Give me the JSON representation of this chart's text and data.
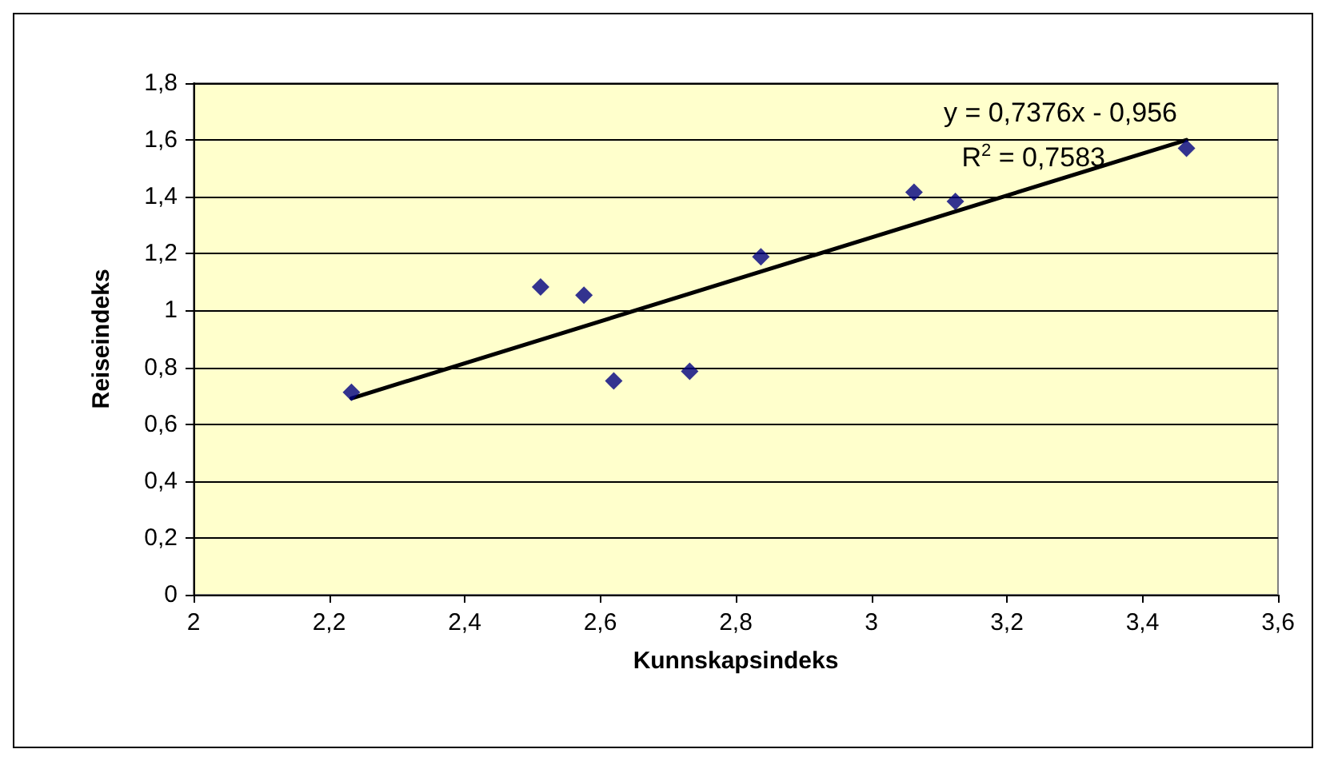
{
  "chart_data": {
    "type": "scatter",
    "xlabel": "Kunnskapsindeks",
    "ylabel": "Reiseindeks",
    "series": [
      {
        "color": "#000080",
        "marker": "diamond",
        "x": [
          2.233,
          2.512,
          2.576,
          2.62,
          2.732,
          2.837,
          3.063,
          3.124,
          3.465
        ],
        "values": [
          0.712,
          1.083,
          1.054,
          0.752,
          0.786,
          1.189,
          1.416,
          1.384,
          1.571
        ]
      },
      {
        "type": "line",
        "color": "#000000",
        "marker": "none",
        "line_style": "solid",
        "x": [
          2.233,
          3.465
        ],
        "values": [
          0.691,
          1.6
        ]
      }
    ],
    "xlim": [
      2,
      3.6
    ],
    "xticks": [
      2,
      {
        "value": 2.2,
        "label": "2,2"
      },
      {
        "value": 2.4,
        "label": "2,4"
      },
      {
        "value": 2.6,
        "label": "2,6"
      },
      {
        "value": 2.8,
        "label": "2,8"
      },
      3,
      {
        "value": 3.2,
        "label": "3,2"
      },
      {
        "value": 3.4,
        "label": "3,4"
      },
      {
        "value": 3.6,
        "label": "3,6"
      }
    ],
    "ylim": [
      0,
      1.8
    ],
    "yticks": [
      0,
      {
        "value": 0.2,
        "label": "0,2"
      },
      {
        "value": 0.4,
        "label": "0,4"
      },
      {
        "value": 0.6,
        "label": "0,6"
      },
      {
        "value": 0.8,
        "label": "0,8"
      },
      1,
      {
        "value": 1.2,
        "label": "1,2"
      },
      {
        "value": 1.4,
        "label": "1,4"
      },
      {
        "value": 1.6,
        "label": "1,6"
      },
      {
        "value": 1.8,
        "label": "1,8"
      }
    ],
    "grid": "y",
    "annotations": [
      "y = 0,7376x - 0,956",
      "R$^{2}$ = 0,7583"
    ]
  }
}
